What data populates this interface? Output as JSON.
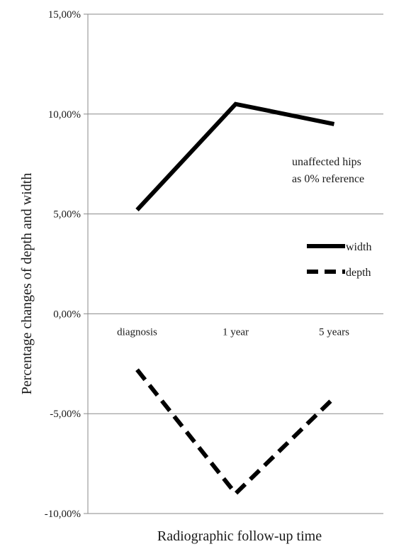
{
  "chart_data": {
    "type": "line",
    "xlabel": "Radiographic follow-up time",
    "ylabel": "Percentage changes of depth and width",
    "categories": [
      "diagnosis",
      "1 year",
      "5 years"
    ],
    "ylim": [
      -10,
      15
    ],
    "yticks": [
      15,
      10,
      5,
      0,
      -5,
      -10
    ],
    "ytick_labels": [
      "15,00%",
      "10,00%",
      "5,00%",
      "0,00%",
      "-5,00%",
      "-10,00%"
    ],
    "grid": true,
    "legend_position": "right",
    "series": [
      {
        "name": "width",
        "style": "solid",
        "color": "#000000",
        "values": [
          5.2,
          10.5,
          9.5
        ]
      },
      {
        "name": "depth",
        "style": "dashed",
        "color": "#000000",
        "values": [
          -2.8,
          -9.0,
          -4.2
        ]
      }
    ],
    "annotations": [
      "unaffected hips",
      "as 0% reference"
    ]
  }
}
